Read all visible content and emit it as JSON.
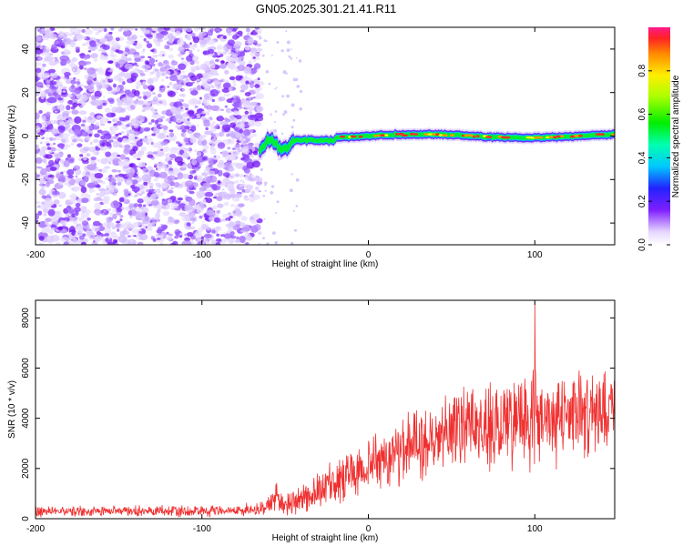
{
  "title": "GN05.2025.301.21.41.R11",
  "chart_data": [
    {
      "type": "heatmap",
      "xlabel": "Height of straight line (km)",
      "ylabel": "Frequency (Hz)",
      "xlim": [
        -200,
        148
      ],
      "ylim": [
        -50,
        50
      ],
      "xticks": [
        -200,
        -100,
        0,
        100
      ],
      "yticks": [
        -40,
        -20,
        0,
        20,
        40
      ],
      "colorbar": {
        "label": "Normalized spectral amplitude",
        "range": [
          0,
          1
        ],
        "ticks": [
          "0.0",
          "0.2",
          "0.4",
          "0.6",
          "0.8"
        ]
      },
      "features": {
        "noise_region_x": [
          -200,
          -65
        ],
        "signal_track_x": [
          -65,
          148
        ],
        "signal_frequency_hz": 0
      }
    },
    {
      "type": "line",
      "xlabel": "Height of straight line (km)",
      "ylabel": "SNR (10 * v/v)",
      "xlim": [
        -200,
        148
      ],
      "ylim": [
        0,
        8700
      ],
      "xticks": [
        -200,
        -100,
        0,
        100
      ],
      "yticks": [
        0,
        2000,
        4000,
        6000,
        8000
      ],
      "color": "#f03030",
      "series": [
        {
          "name": "SNR",
          "x": [
            -200,
            -150,
            -100,
            -75,
            -62,
            -55,
            -45,
            -35,
            -20,
            0,
            20,
            40,
            60,
            80,
            100,
            120,
            148
          ],
          "trend": [
            280,
            300,
            320,
            350,
            450,
            800,
            600,
            900,
            1400,
            2100,
            2800,
            3300,
            3600,
            3800,
            3900,
            4100,
            4300
          ],
          "spread": [
            200,
            220,
            230,
            230,
            300,
            600,
            500,
            700,
            900,
            1100,
            1400,
            1600,
            1700,
            1800,
            1900,
            1800,
            1600
          ],
          "peak": {
            "x": 100,
            "y": 8600
          }
        }
      ]
    }
  ]
}
